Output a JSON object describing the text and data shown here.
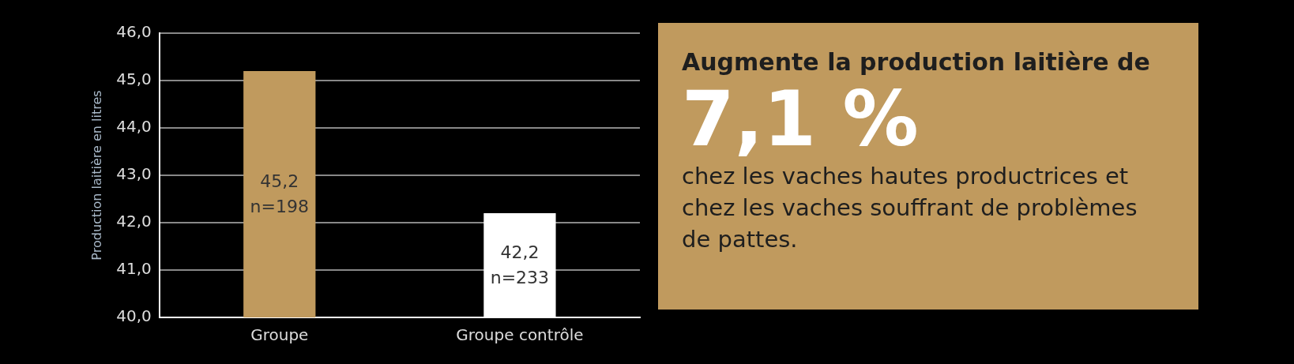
{
  "chart_data": {
    "type": "bar",
    "ylabel": "Production laitière en litres",
    "categories": [
      "Groupe",
      "Groupe contrôle"
    ],
    "values": [
      45.2,
      42.2
    ],
    "colors": [
      "#c09a5e",
      "#ffffff"
    ],
    "value_labels": [
      "45,2\nn=198",
      "42,2\nn=233"
    ],
    "ylim": [
      40,
      46
    ],
    "yticks": [
      {
        "value": 40,
        "label": "40,0"
      },
      {
        "value": 41,
        "label": "41,0"
      },
      {
        "value": 42,
        "label": "42,0"
      },
      {
        "value": 43,
        "label": "43,0"
      },
      {
        "value": 44,
        "label": "44,0"
      },
      {
        "value": 45,
        "label": "45,0"
      },
      {
        "value": 46,
        "label": "46,0"
      }
    ],
    "grid": "y",
    "legend": false,
    "annotations": [
      "Augmente la production laitière de",
      "7,1 %",
      "chez les vaches hautes productrices et chez les vaches souffrant de problèmes de pattes."
    ]
  }
}
